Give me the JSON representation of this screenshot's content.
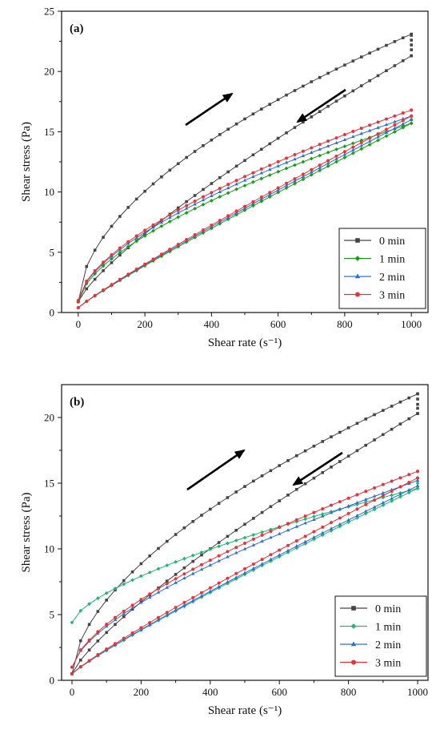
{
  "chart_data": [
    {
      "type": "line",
      "panel_label": "(a)",
      "xlabel": "Shear rate (s⁻¹)",
      "ylabel": "Shear stress (Pa)",
      "xlim": [
        -50,
        1050
      ],
      "ylim": [
        0,
        25
      ],
      "xticks": [
        "0",
        "200",
        "400",
        "600",
        "800",
        "1000"
      ],
      "yticks": [
        "0",
        "5",
        "10",
        "15",
        "20",
        "25"
      ],
      "legend_position": "bottom-right",
      "annotations": [
        "arrow up-right along upper curve (increasing shear rate)",
        "arrow down-left along lower curves (decreasing shear rate)"
      ],
      "series": [
        {
          "name": "0 min",
          "color": "#444444",
          "marker": "square",
          "up": {
            "max": 23.1,
            "p": 0.55,
            "y0": 0.9
          },
          "down": {
            "max": 21.3,
            "p": 0.8,
            "y0": 0.9
          },
          "top_points": [
            21.3,
            21.8,
            22.2,
            22.6,
            23.0
          ]
        },
        {
          "name": "1 min",
          "color": "#1a9e1a",
          "marker": "diamond",
          "up": {
            "max": 15.7,
            "p": 0.62,
            "y0": 0.9
          },
          "down": {
            "max": 15.7,
            "p": 0.92,
            "y0": 0.4
          },
          "top_points": [
            15.7,
            16.0
          ]
        },
        {
          "name": "2 min",
          "color": "#2a70d0",
          "marker": "triangle",
          "up": {
            "max": 16.3,
            "p": 0.62,
            "y0": 1.0
          },
          "down": {
            "max": 16.0,
            "p": 0.92,
            "y0": 0.4
          },
          "top_points": [
            16.0,
            16.3
          ]
        },
        {
          "name": "3 min",
          "color": "#e8333b",
          "marker": "circle",
          "up": {
            "max": 16.8,
            "p": 0.62,
            "y0": 1.0
          },
          "down": {
            "max": 16.3,
            "p": 0.92,
            "y0": 0.4
          },
          "top_points": [
            16.3,
            16.8
          ]
        }
      ]
    },
    {
      "type": "line",
      "panel_label": "(b)",
      "xlabel": "Shear rate (s⁻¹)",
      "ylabel": "Shear stress (Pa)",
      "xlim": [
        -30,
        1030
      ],
      "ylim": [
        0,
        22.5
      ],
      "xticks": [
        "0",
        "200",
        "400",
        "600",
        "800",
        "1000"
      ],
      "yticks": [
        "0",
        "5",
        "10",
        "15",
        "20"
      ],
      "legend_position": "bottom-right",
      "annotations": [
        "arrow up-right along upper curve (increasing shear rate)",
        "arrow down-left along lower curves (decreasing shear rate)"
      ],
      "series": [
        {
          "name": "0 min",
          "color": "#444444",
          "marker": "square",
          "up": {
            "max": 21.8,
            "p": 0.58,
            "y0": 0.5
          },
          "down": {
            "max": 20.3,
            "p": 0.8,
            "y0": 0.5
          },
          "top_points": [
            20.3,
            20.7,
            21.0,
            21.4,
            21.8
          ]
        },
        {
          "name": "1 min",
          "color": "#22b573",
          "marker": "diamond",
          "up": {
            "max": 14.6,
            "p": 0.66,
            "y0": 4.4
          },
          "down": {
            "max": 14.6,
            "p": 0.9,
            "y0": 0.5
          },
          "top_points": [
            14.6,
            15.0
          ]
        },
        {
          "name": "2 min",
          "color": "#2a70d0",
          "marker": "triangle",
          "up": {
            "max": 15.2,
            "p": 0.66,
            "y0": 1.0
          },
          "down": {
            "max": 14.8,
            "p": 0.9,
            "y0": 0.5
          },
          "top_points": [
            14.8,
            15.2
          ]
        },
        {
          "name": "3 min",
          "color": "#e8333b",
          "marker": "circle",
          "up": {
            "max": 15.9,
            "p": 0.66,
            "y0": 1.0
          },
          "down": {
            "max": 15.4,
            "p": 0.9,
            "y0": 0.5
          },
          "top_points": [
            15.4,
            15.9
          ]
        }
      ]
    }
  ]
}
